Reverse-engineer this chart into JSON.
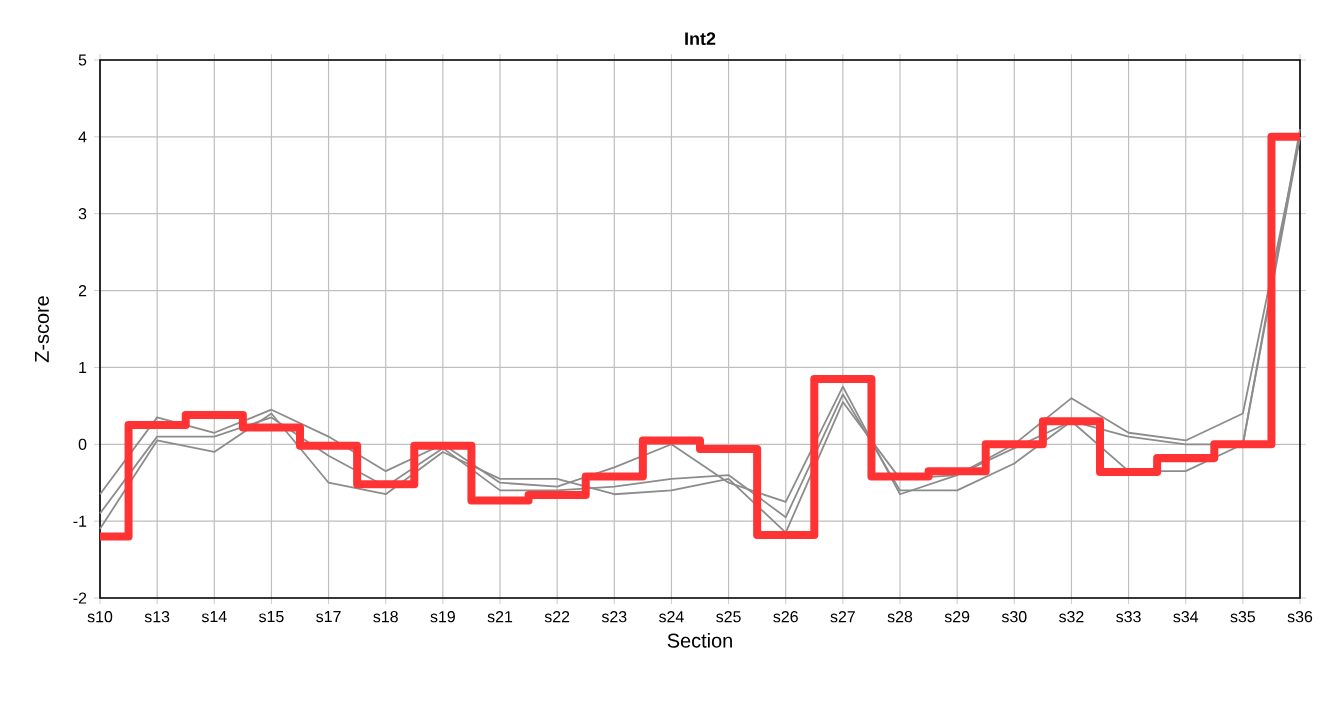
{
  "chart_data": {
    "type": "line",
    "title": "Int2",
    "xlabel": "Section",
    "ylabel": "Z-score",
    "categories": [
      "s10",
      "s13",
      "s14",
      "s15",
      "s17",
      "s18",
      "s19",
      "s21",
      "s22",
      "s23",
      "s24",
      "s25",
      "s26",
      "s27",
      "s28",
      "s29",
      "s30",
      "s32",
      "s33",
      "s34",
      "s35",
      "s36"
    ],
    "ylim": [
      -2,
      5
    ],
    "yticks": [
      -2,
      -1,
      0,
      1,
      2,
      3,
      4,
      5
    ],
    "grid": true,
    "series": [
      {
        "color": "#8c8c8c",
        "values": [
          -0.65,
          0.35,
          0.15,
          0.45,
          0.1,
          -0.35,
          0.0,
          -0.5,
          -0.55,
          -0.3,
          0.0,
          -0.5,
          -0.75,
          0.75,
          -0.65,
          -0.4,
          0.0,
          0.6,
          0.15,
          0.05,
          0.4,
          4.0
        ]
      },
      {
        "color": "#8c8c8c",
        "values": [
          -0.9,
          0.1,
          0.1,
          0.35,
          -0.15,
          -0.55,
          -0.05,
          -0.6,
          -0.6,
          -0.55,
          -0.45,
          -0.4,
          -0.95,
          0.65,
          -0.6,
          -0.6,
          -0.25,
          0.3,
          0.1,
          0.0,
          0.0,
          4.1
        ]
      },
      {
        "color": "#8c8c8c",
        "values": [
          -1.1,
          0.05,
          -0.1,
          0.4,
          -0.5,
          -0.65,
          -0.1,
          -0.45,
          -0.45,
          -0.65,
          -0.6,
          -0.45,
          -1.15,
          0.55,
          -0.45,
          -0.4,
          -0.05,
          0.3,
          -0.35,
          -0.35,
          0.0,
          4.0
        ]
      },
      {
        "type": "step",
        "color": "#ff3333",
        "values": [
          -1.2,
          0.25,
          0.38,
          0.22,
          -0.02,
          -0.52,
          -0.02,
          -0.73,
          -0.66,
          -0.42,
          0.05,
          -0.06,
          -1.18,
          0.85,
          -0.42,
          -0.35,
          0.0,
          0.3,
          -0.36,
          -0.18,
          0.0,
          4.0
        ]
      }
    ]
  }
}
